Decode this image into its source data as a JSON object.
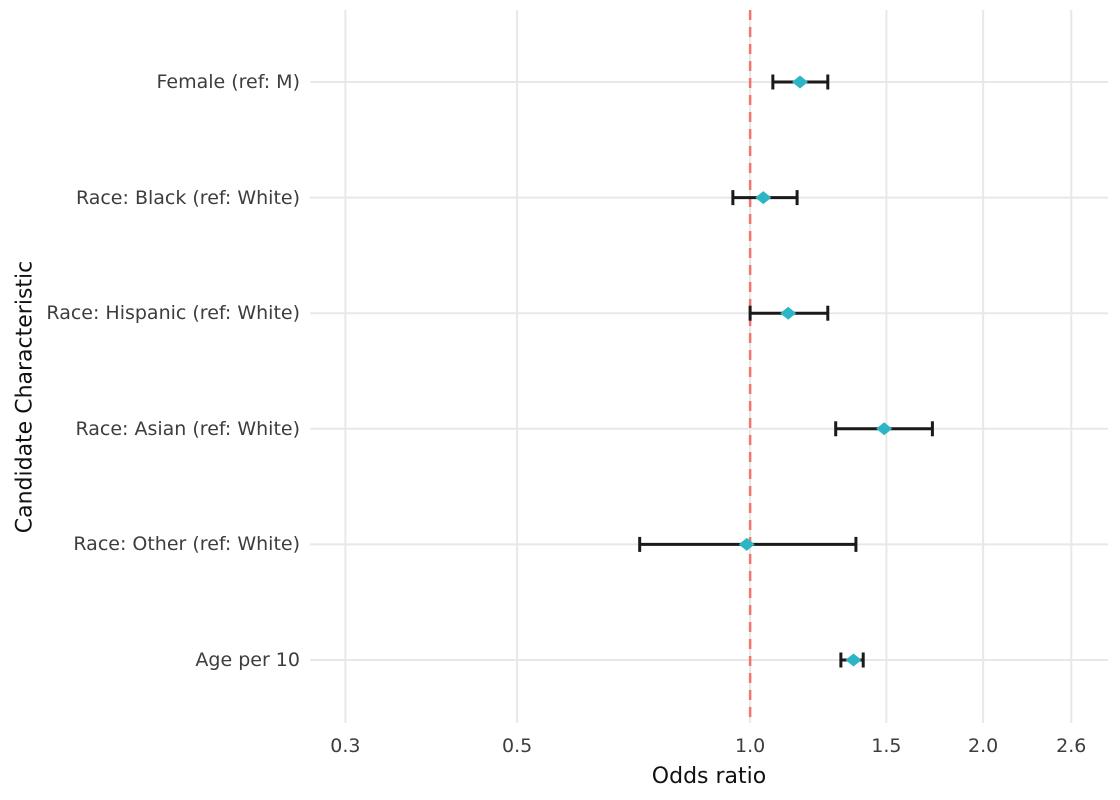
{
  "figure": {
    "x_axis_title": "Odds ratio",
    "y_axis_title": "Candidate Characteristic"
  },
  "chart_data": {
    "type": "scatter",
    "subtype": "forest-plot",
    "title": "",
    "xlabel": "Odds ratio",
    "ylabel": "Candidate Characteristic",
    "x_scale": "log",
    "xlim": [
      0.27,
      2.9
    ],
    "x_ticks": [
      0.3,
      0.5,
      1.0,
      1.5,
      2.0,
      2.6
    ],
    "x_tick_labels": [
      "0.3",
      "0.5",
      "1.0",
      "1.5",
      "2.0",
      "2.6"
    ],
    "grid": true,
    "legend": "none",
    "reference_line": {
      "x": 1.0,
      "style": "dashed"
    },
    "categories": [
      "Female (ref: M)",
      "Race: Black (ref: White)",
      "Race: Hispanic (ref: White)",
      "Race: Asian (ref: White)",
      "Race: Other (ref: White)",
      "Age per 10"
    ],
    "series": [
      {
        "name": "odds_ratio",
        "values": [
          1.16,
          1.04,
          1.12,
          1.49,
          0.99,
          1.36
        ]
      },
      {
        "name": "ci_low",
        "values": [
          1.07,
          0.95,
          1.0,
          1.29,
          0.72,
          1.31
        ]
      },
      {
        "name": "ci_high",
        "values": [
          1.26,
          1.15,
          1.26,
          1.72,
          1.37,
          1.4
        ]
      }
    ],
    "colors": {
      "marker": "#2BB5C5",
      "error_bar": "#1a1a1a",
      "grid": "#E8E8E8",
      "reference": "#F3766C",
      "tick_label": "#3d3d3d",
      "axis_title": "#111111",
      "background": "#ffffff"
    }
  }
}
